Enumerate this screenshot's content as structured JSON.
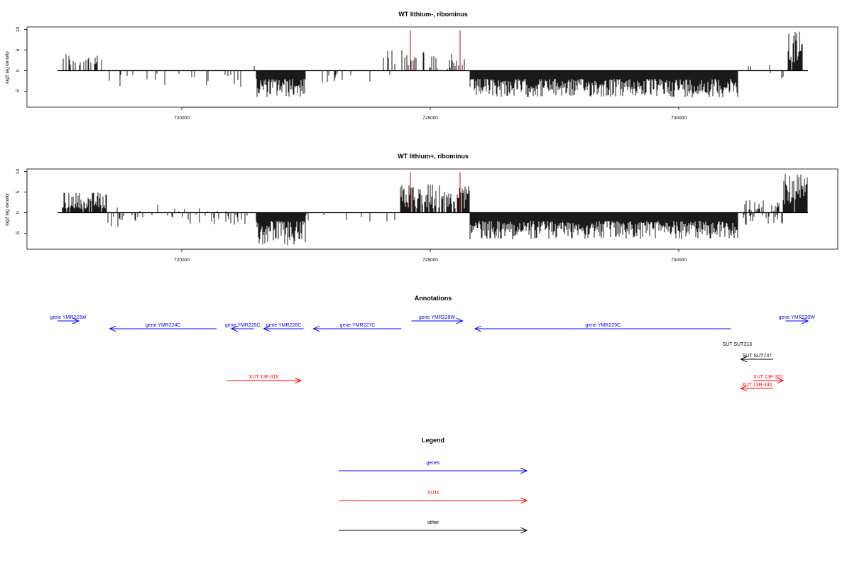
{
  "chart_data": [
    {
      "type": "bar",
      "title": "WT lithium-, ribominus",
      "ylabel": "log2 tag density",
      "xlabel": "",
      "xlim": [
        717500,
        732600
      ],
      "ylim": [
        -8,
        10
      ],
      "xticks": [
        720000,
        725000,
        730000
      ],
      "yticks": [
        10,
        5,
        0,
        -5
      ],
      "grid": false,
      "highlight_x": [
        724600,
        725600
      ],
      "highlight_color": "#cc0000",
      "bar_color": "#000000",
      "segments": [
        {
          "from": 717600,
          "to": 718400,
          "sign": 1,
          "min": 1,
          "max": 4.5,
          "density": 0.35
        },
        {
          "from": 718400,
          "to": 721300,
          "sign": -1,
          "min": 0.5,
          "max": 4,
          "density": 0.12
        },
        {
          "from": 721300,
          "to": 721500,
          "sign": 1,
          "min": 1,
          "max": 2.5,
          "density": 0.1
        },
        {
          "from": 721500,
          "to": 722500,
          "sign": -1,
          "min": 2,
          "max": 6.5,
          "density": 1
        },
        {
          "from": 722500,
          "to": 724200,
          "sign": -1,
          "min": 0.5,
          "max": 3,
          "density": 0.08
        },
        {
          "from": 724000,
          "to": 725700,
          "sign": 1,
          "min": 0.5,
          "max": 5,
          "density": 0.3
        },
        {
          "from": 725800,
          "to": 731200,
          "sign": -1,
          "min": 2,
          "max": 6.5,
          "density": 1
        },
        {
          "from": 731400,
          "to": 732000,
          "sign": 1,
          "min": 0.5,
          "max": 1.5,
          "density": 0.1
        },
        {
          "from": 731800,
          "to": 732200,
          "sign": -1,
          "min": 0.5,
          "max": 2.5,
          "density": 0.1
        },
        {
          "from": 732200,
          "to": 732500,
          "sign": 1,
          "min": 2,
          "max": 9.5,
          "density": 0.9
        }
      ]
    },
    {
      "type": "bar",
      "title": "WT lithium+, ribominus",
      "ylabel": "log2 tag density",
      "xlabel": "",
      "xlim": [
        717500,
        732600
      ],
      "ylim": [
        -8,
        10
      ],
      "xticks": [
        720000,
        725000,
        730000
      ],
      "yticks": [
        10,
        5,
        0,
        -5
      ],
      "grid": false,
      "highlight_x": [
        724600,
        725600
      ],
      "highlight_color": "#cc0000",
      "bar_color": "#000000",
      "segments": [
        {
          "from": 717600,
          "to": 718500,
          "sign": 1,
          "min": 1,
          "max": 5,
          "density": 0.9
        },
        {
          "from": 718500,
          "to": 721500,
          "sign": -1,
          "min": 0.5,
          "max": 3.5,
          "density": 0.2
        },
        {
          "from": 718500,
          "to": 721500,
          "sign": 1,
          "min": 0.3,
          "max": 2,
          "density": 0.06
        },
        {
          "from": 721500,
          "to": 722500,
          "sign": -1,
          "min": 2,
          "max": 8,
          "density": 1
        },
        {
          "from": 722500,
          "to": 724400,
          "sign": -1,
          "min": 0.5,
          "max": 2.5,
          "density": 0.1
        },
        {
          "from": 724400,
          "to": 725800,
          "sign": 1,
          "min": 1,
          "max": 7,
          "density": 0.85
        },
        {
          "from": 725800,
          "to": 731200,
          "sign": -1,
          "min": 2,
          "max": 6.5,
          "density": 1
        },
        {
          "from": 731300,
          "to": 732100,
          "sign": 1,
          "min": 0.5,
          "max": 3,
          "density": 0.4
        },
        {
          "from": 731300,
          "to": 732100,
          "sign": -1,
          "min": 0.5,
          "max": 3,
          "density": 0.3
        },
        {
          "from": 732100,
          "to": 732600,
          "sign": 1,
          "min": 2,
          "max": 9.5,
          "density": 0.95
        }
      ]
    }
  ],
  "annotations": {
    "title": "Annotations",
    "features": [
      {
        "label": "gene YMR223W",
        "start": 717500,
        "end": 717930,
        "strand": "+",
        "color": "#0000ff",
        "row": 0
      },
      {
        "label": "gene YMR224C",
        "start": 718550,
        "end": 720700,
        "strand": "-",
        "color": "#0000ff",
        "row": 1
      },
      {
        "label": "gene YMR225C",
        "start": 721000,
        "end": 721450,
        "strand": "-",
        "color": "#0000ff",
        "row": 1
      },
      {
        "label": "gene YMR226C",
        "start": 721650,
        "end": 722450,
        "strand": "-",
        "color": "#0000ff",
        "row": 1
      },
      {
        "label": "gene YMR227C",
        "start": 722650,
        "end": 724420,
        "strand": "-",
        "color": "#0000ff",
        "row": 1
      },
      {
        "label": "gene YMR228W",
        "start": 724620,
        "end": 725650,
        "strand": "+",
        "color": "#0000ff",
        "row": 0
      },
      {
        "label": "gene YMR229C",
        "start": 725900,
        "end": 731050,
        "strand": "-",
        "color": "#0000ff",
        "row": 1
      },
      {
        "label": "gene YMR230W",
        "start": 732150,
        "end": 732600,
        "strand": "+",
        "color": "#0000ff",
        "row": 0
      },
      {
        "label": "SUT SUT313",
        "start": 731050,
        "end": 731300,
        "strand": "",
        "color": "#000000",
        "row": 3
      },
      {
        "label": "SUT SUT737",
        "start": 731250,
        "end": 731900,
        "strand": "-",
        "color": "#000000",
        "row": 4
      },
      {
        "label": "XUT 13F-315",
        "start": 720900,
        "end": 722400,
        "strand": "+",
        "color": "#ff0000",
        "row": 6
      },
      {
        "label": "XUT 13F-321",
        "start": 731500,
        "end": 732100,
        "strand": "+",
        "color": "#ff0000",
        "row": 6
      },
      {
        "label": "XUT 13R-330",
        "start": 731250,
        "end": 731900,
        "strand": "-",
        "color": "#ff0000",
        "row": 7
      }
    ]
  },
  "legend": {
    "title": "Legend",
    "items": [
      {
        "label": "genes",
        "color": "#0000ff"
      },
      {
        "label": "XUTs",
        "color": "#ff0000"
      },
      {
        "label": "other",
        "color": "#000000"
      }
    ]
  }
}
